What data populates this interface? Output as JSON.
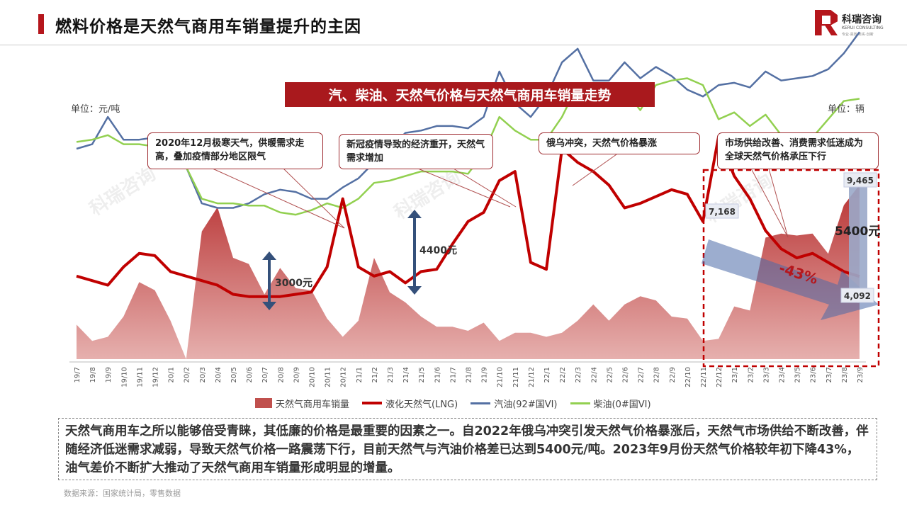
{
  "header": {
    "title": "燃料价格是天然气商用车销量提升的主因"
  },
  "logo": {
    "name": "科瑞咨询",
    "sub": "KERUI CONSULTING",
    "tagline": "专业·高效·务实·创新"
  },
  "chart_title": "汽、柴油、天然气价格与天然气商用车销量走势",
  "unit_left": "单位：元/吨",
  "unit_right": "单位：辆",
  "annotations": [
    "2020年12月极寒天气，供暖需求走高，叠加疫情部分地区限气",
    "新冠疫情导致的经济重开，天然气需求增加",
    "俄乌冲突，天然气价格暴涨",
    "市场供给改善、消费需求低迷成为全球天然气价格承压下行"
  ],
  "callouts": {
    "gap_1": "3000元",
    "gap_2": "4400元",
    "gap_3": "5400元",
    "lng_start": "7,168",
    "gasoline_end": "9,465",
    "lng_end": "4,092",
    "decline": "-43%"
  },
  "summary": "天然气商用车之所以能够倍受青睐，其低廉的价格是最重要的因素之一。自2022年俄乌冲突引发天然气价格暴涨后，天然气市场供给不断改善，伴随经济低迷需求减弱，导致天然气价格一路震荡下行，目前天然气与汽油价格差已达到5400元/吨。2023年9月份天然气价格较年初下降43%，油气差价不断扩大推动了天然气商用车销量形成明显的增量。",
  "source": "数据来源：国家统计局，零售数据",
  "watermark": "科瑞咨询",
  "colors": {
    "accent": "#b5161c",
    "lng": "#c00000",
    "gasoline": "#5470a3",
    "diesel": "#92d050",
    "sales": "#c0504d"
  },
  "chart_data": {
    "type": "line",
    "categories": [
      "19/7",
      "19/8",
      "19/9",
      "19/10",
      "19/11",
      "19/12",
      "20/1",
      "20/2",
      "20/3",
      "20/4",
      "20/5",
      "20/6",
      "20/7",
      "20/8",
      "20/9",
      "20/10",
      "20/11",
      "20/12",
      "21/1",
      "21/2",
      "21/3",
      "21/4",
      "21/5",
      "21/6",
      "21/7",
      "21/8",
      "21/9",
      "21/10",
      "21/11",
      "21/12",
      "22/1",
      "22/2",
      "22/3",
      "22/4",
      "22/5",
      "22/6",
      "22/7",
      "22/8",
      "22/9",
      "22/10",
      "22/11",
      "22/12",
      "23/1",
      "23/2",
      "23/3",
      "23/4",
      "23/5",
      "23/6",
      "23/7",
      "23/8",
      "23/9"
    ],
    "series": [
      {
        "name": "天然气商用车销量",
        "type": "area",
        "axis": "right",
        "values": [
          1700,
          900,
          1100,
          2100,
          3800,
          3400,
          1900,
          0,
          6300,
          7500,
          5000,
          4700,
          3200,
          4500,
          3500,
          3400,
          2000,
          1100,
          1900,
          5000,
          3300,
          2800,
          2100,
          1600,
          1600,
          1400,
          1800,
          900,
          1300,
          1300,
          1100,
          1300,
          1900,
          2700,
          1900,
          2700,
          3100,
          2900,
          2100,
          2000,
          900,
          1000,
          2600,
          2400,
          6000,
          6200,
          6100,
          6200,
          5200,
          7600,
          8600
        ]
      },
      {
        "name": "液化天然气(LNG)",
        "type": "line",
        "axis": "left",
        "values": [
          4100,
          4000,
          3900,
          4300,
          4600,
          4550,
          4200,
          4100,
          4000,
          3900,
          3700,
          3650,
          3650,
          3650,
          3700,
          3750,
          4300,
          5800,
          4300,
          4100,
          4200,
          3950,
          4200,
          4250,
          4800,
          5300,
          5500,
          6200,
          6400,
          4400,
          4250,
          6900,
          6600,
          6400,
          6100,
          5600,
          5700,
          5850,
          6000,
          5900,
          5300,
          7168,
          6300,
          5800,
          5100,
          4700,
          4500,
          4600,
          4400,
          4200,
          4092
        ]
      },
      {
        "name": "汽油(92#国VI)",
        "type": "line",
        "axis": "left",
        "values": [
          6900,
          7000,
          7600,
          7100,
          7100,
          7150,
          7100,
          6500,
          5700,
          5600,
          5600,
          5700,
          5900,
          6000,
          5950,
          5800,
          5800,
          6050,
          6250,
          6600,
          6900,
          7250,
          7300,
          7400,
          7400,
          7350,
          7600,
          8600,
          7900,
          7600,
          8050,
          8800,
          9100,
          8400,
          8400,
          8800,
          8450,
          8700,
          8500,
          8200,
          8050,
          8300,
          8350,
          8250,
          8600,
          8400,
          8450,
          8500,
          8650,
          9000,
          9465
        ]
      },
      {
        "name": "柴油(0#国VI)",
        "type": "line",
        "axis": "left",
        "values": [
          7050,
          7100,
          7200,
          7000,
          7000,
          6950,
          6850,
          6500,
          5800,
          5700,
          5700,
          5650,
          5650,
          5500,
          5450,
          5550,
          5700,
          5600,
          5800,
          6150,
          6200,
          6300,
          6400,
          6400,
          6400,
          6350,
          6800,
          7600,
          7300,
          7100,
          7100,
          7600,
          8300,
          8150,
          8200,
          8200,
          7750,
          8300,
          8400,
          8450,
          8300,
          7550,
          7700,
          7400,
          7650,
          7200,
          7000,
          7150,
          7550,
          7950,
          8000
        ]
      }
    ],
    "legend": [
      "天然气商用车销量",
      "液化天然气(LNG)",
      "汽油(92#国VI)",
      "柴油(0#国VI)"
    ],
    "legend_position": "bottom"
  }
}
